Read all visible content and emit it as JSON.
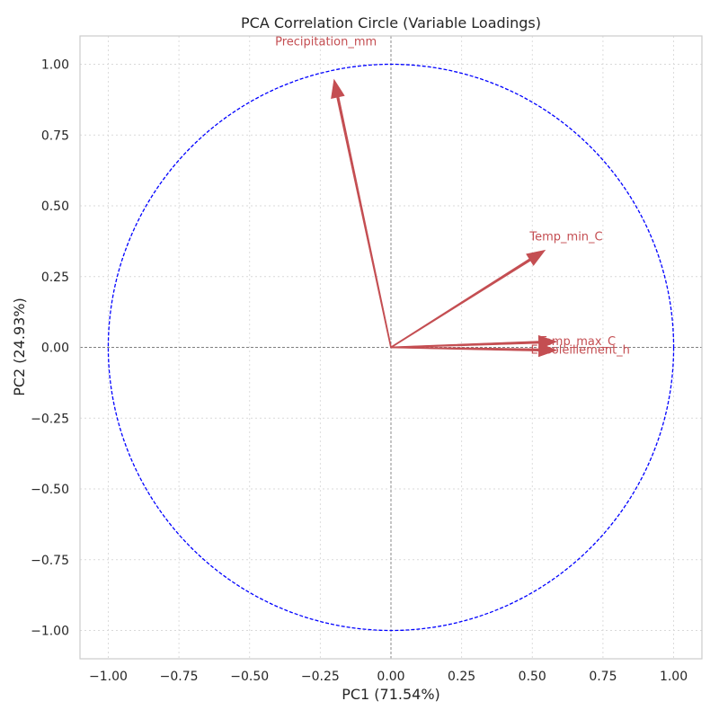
{
  "chart_data": {
    "type": "scatter",
    "title": "PCA Correlation Circle (Variable Loadings)",
    "xlabel": "PC1 (71.54%)",
    "ylabel": "PC2 (24.93%)",
    "xlim": [
      -1.1,
      1.1
    ],
    "ylim": [
      -1.1,
      1.1
    ],
    "xticks": [
      -1.0,
      -0.75,
      -0.5,
      -0.25,
      0.0,
      0.25,
      0.5,
      0.75,
      1.0
    ],
    "yticks": [
      -1.0,
      -0.75,
      -0.5,
      -0.25,
      0.0,
      0.25,
      0.5,
      0.75,
      1.0
    ],
    "xtick_labels": [
      "−1.00",
      "−0.75",
      "−0.50",
      "−0.25",
      "0.00",
      "0.25",
      "0.50",
      "0.75",
      "1.00"
    ],
    "ytick_labels": [
      "−1.00",
      "−0.75",
      "−0.50",
      "−0.25",
      "0.00",
      "0.25",
      "0.50",
      "0.75",
      "1.00"
    ],
    "grid": true,
    "circle": {
      "radius": 1.0,
      "color": "#0000ff",
      "style": "dashed"
    },
    "arrow_color": "#c44e52",
    "circle_color": "#0000ff",
    "loadings": [
      {
        "name": "Precipitation_mm",
        "x": -0.2,
        "y": 0.94,
        "label_x": -0.23,
        "label_y": 1.08
      },
      {
        "name": "Temp_min_C",
        "x": 0.54,
        "y": 0.34,
        "label_x": 0.62,
        "label_y": 0.39
      },
      {
        "name": "Temp_max_C",
        "x": 0.58,
        "y": 0.02,
        "label_x": 0.66,
        "label_y": 0.02
      },
      {
        "name": "Ensoleillement_h",
        "x": 0.58,
        "y": -0.01,
        "label_x": 0.67,
        "label_y": -0.01
      }
    ]
  }
}
